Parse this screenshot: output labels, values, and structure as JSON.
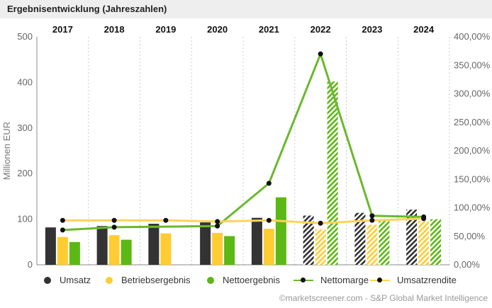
{
  "header": {
    "title": "Ergebnisentwicklung (Jahreszahlen)"
  },
  "colors": {
    "umsatz": "#333333",
    "betriebsergebnis": "#ffcc33",
    "nettoergebnis": "#5cb814",
    "nettomarge_line": "#6ab82e",
    "umsatzrendite_line": "#ffd35a",
    "grid": "#cccccc",
    "axis": "#888888"
  },
  "chart_data": {
    "type": "bar",
    "title": "Ergebnisentwicklung (Jahreszahlen)",
    "categories": [
      "2017",
      "2018",
      "2019",
      "2020",
      "2021",
      "2022",
      "2023",
      "2024"
    ],
    "estimate_from_index": 5,
    "ylabel": "Millionen EUR",
    "ylim": [
      0,
      500
    ],
    "y_ticks": [
      "0",
      "100",
      "200",
      "300",
      "400",
      "500"
    ],
    "y2lim": [
      0,
      400
    ],
    "y2_ticks": [
      "0,00%",
      "50,00%",
      "100,00%",
      "150,00%",
      "200,00%",
      "250,00%",
      "300,00%",
      "350,00%",
      "400,00%"
    ],
    "series": [
      {
        "name": "Umsatz",
        "kind": "bar",
        "values": [
          82,
          85,
          90,
          93,
          103,
          108,
          114,
          121
        ]
      },
      {
        "name": "Betriebsergebnis",
        "kind": "bar",
        "values": [
          61,
          65,
          69,
          70,
          79,
          78,
          88,
          96
        ]
      },
      {
        "name": "Nettoergebnis",
        "kind": "bar",
        "values": [
          50,
          55,
          null,
          63,
          148,
          402,
          96,
          100
        ]
      },
      {
        "name": "Nettomarge",
        "kind": "line",
        "axis": "right",
        "values": [
          61,
          66,
          null,
          68,
          143,
          370,
          86,
          84
        ]
      },
      {
        "name": "Umsatzrendite",
        "kind": "line",
        "axis": "right",
        "values": [
          78,
          78,
          78,
          76,
          78,
          73,
          78,
          81
        ]
      }
    ]
  },
  "legend": {
    "umsatz": "Umsatz",
    "betriebsergebnis": "Betriebsergebnis",
    "nettoergebnis": "Nettoergebnis",
    "nettomarge": "Nettomarge",
    "umsatzrendite": "Umsatzrendite"
  },
  "footer": {
    "source": "©marketscreener.com - S&P Global Market Intelligence"
  }
}
